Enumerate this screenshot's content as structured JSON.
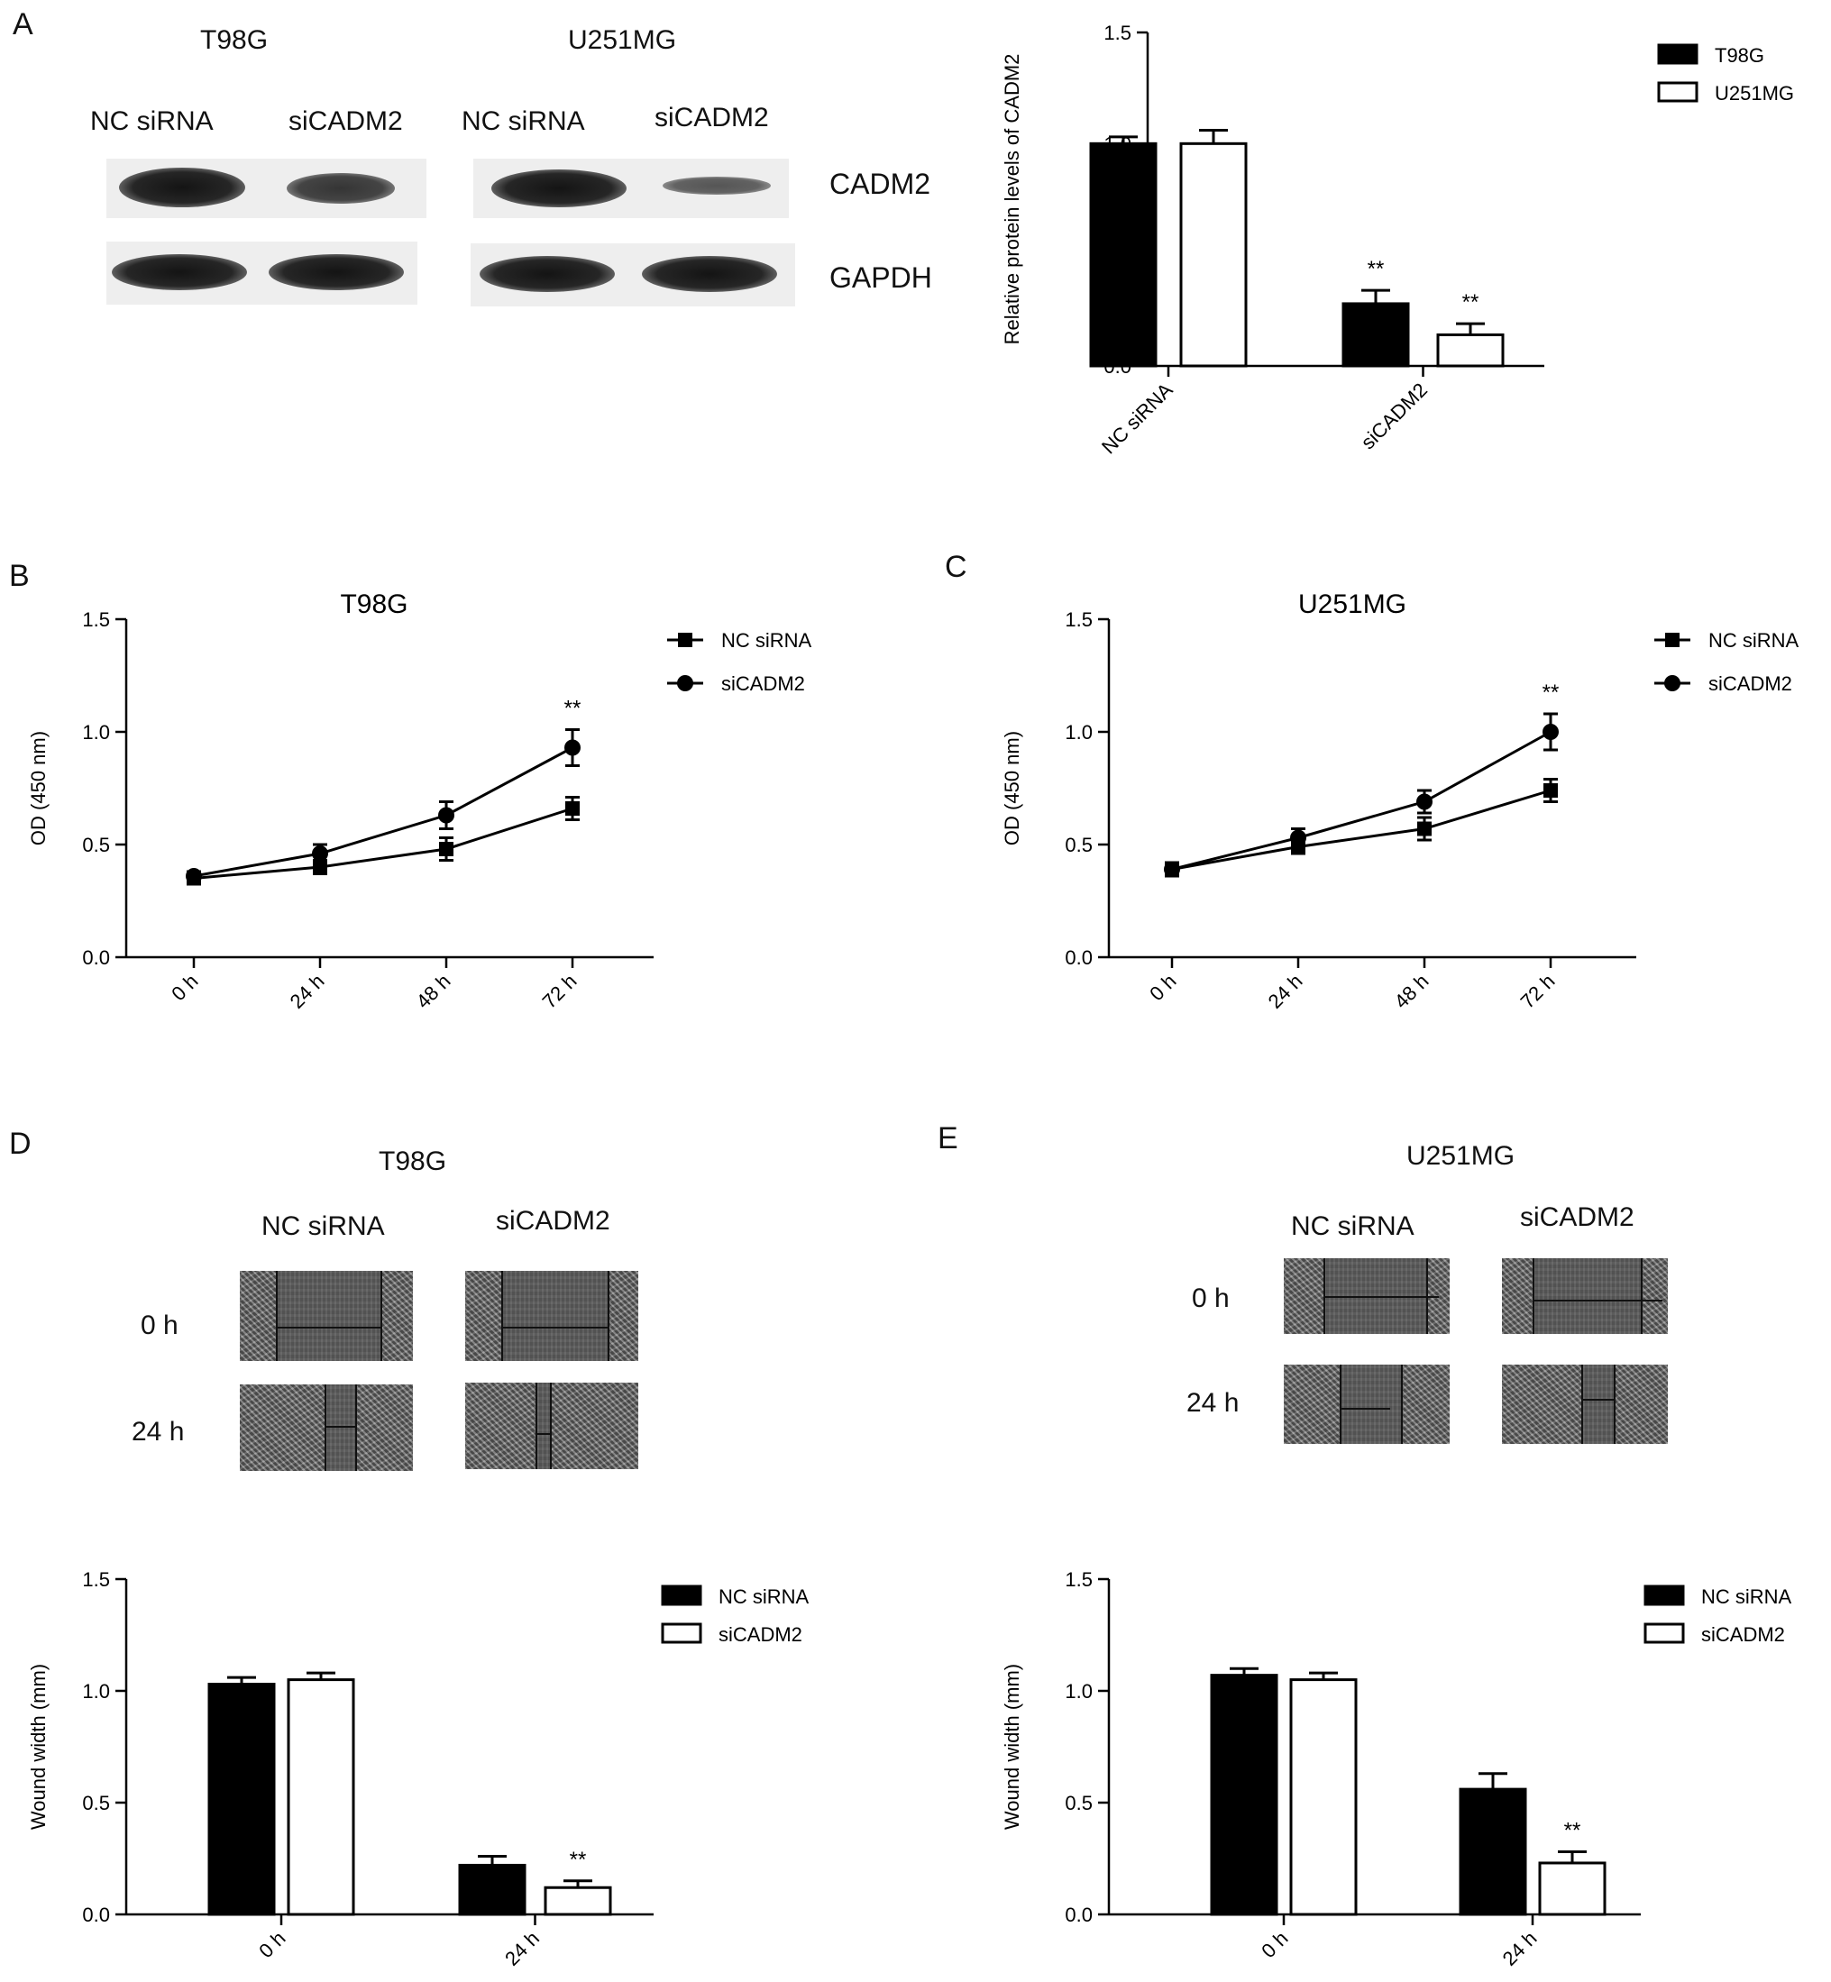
{
  "panels": {
    "A": {
      "letter": "A",
      "blot": {
        "cell_lines": [
          "T98G",
          "U251MG"
        ],
        "lanes": [
          "NC siRNA",
          "siCADM2",
          "NC siRNA",
          "siCADM2"
        ],
        "rows": [
          "CADM2",
          "GAPDH"
        ]
      }
    },
    "B": {
      "letter": "B"
    },
    "C": {
      "letter": "C"
    },
    "D": {
      "letter": "D",
      "title": "T98G",
      "col_labels": [
        "NC siRNA",
        "siCADM2"
      ],
      "row_labels": [
        "0 h",
        "24 h"
      ]
    },
    "E": {
      "letter": "E",
      "title": "U251MG",
      "col_labels": [
        "NC siRNA",
        "siCADM2"
      ],
      "row_labels": [
        "0 h",
        "24 h"
      ]
    }
  },
  "colors": {
    "filled": "#000000",
    "open": "#ffffff",
    "axis": "#000000"
  },
  "chart_data": [
    {
      "id": "A-bar",
      "type": "bar",
      "title": "",
      "ylabel": "Relative protein levels of CADM2",
      "xlabel": "",
      "categories": [
        "NC siRNA",
        "siCADM2"
      ],
      "ylim": [
        0,
        1.5
      ],
      "yticks": [
        "0.0",
        "0.5",
        "1.0",
        "1.5"
      ],
      "series": [
        {
          "name": "T98G",
          "style": "filled",
          "values": [
            1.0,
            0.28
          ],
          "errors": [
            0.03,
            0.06
          ]
        },
        {
          "name": "U251MG",
          "style": "open",
          "values": [
            1.0,
            0.14
          ],
          "errors": [
            0.06,
            0.05
          ]
        }
      ],
      "annotations": [
        {
          "series": 0,
          "category": 1,
          "text": "**"
        },
        {
          "series": 1,
          "category": 1,
          "text": "**"
        }
      ],
      "legend": "top-right",
      "grid": false
    },
    {
      "id": "B-line",
      "type": "line",
      "title": "T98G",
      "ylabel": "OD (450 nm)",
      "xlabel": "",
      "categories": [
        "0 h",
        "24 h",
        "48 h",
        "72 h"
      ],
      "ylim": [
        0,
        1.5
      ],
      "yticks": [
        "0.0",
        "0.5",
        "1.0",
        "1.5"
      ],
      "series": [
        {
          "name": "NC siRNA",
          "marker": "square",
          "values": [
            0.35,
            0.4,
            0.48,
            0.66
          ],
          "errors": [
            0.02,
            0.03,
            0.05,
            0.05
          ]
        },
        {
          "name": "siCADM2",
          "marker": "circle",
          "values": [
            0.36,
            0.46,
            0.63,
            0.93
          ],
          "errors": [
            0.02,
            0.04,
            0.06,
            0.08
          ]
        }
      ],
      "annotations": [
        {
          "category": 3,
          "text": "**"
        }
      ],
      "legend": "top-right",
      "grid": false
    },
    {
      "id": "C-line",
      "type": "line",
      "title": "U251MG",
      "ylabel": "OD (450 nm)",
      "xlabel": "",
      "categories": [
        "0 h",
        "24 h",
        "48 h",
        "72 h"
      ],
      "ylim": [
        0,
        1.5
      ],
      "yticks": [
        "0.0",
        "0.5",
        "1.0",
        "1.5"
      ],
      "series": [
        {
          "name": "NC siRNA",
          "marker": "square",
          "values": [
            0.39,
            0.49,
            0.57,
            0.74
          ],
          "errors": [
            0.03,
            0.03,
            0.05,
            0.05
          ]
        },
        {
          "name": "siCADM2",
          "marker": "circle",
          "values": [
            0.39,
            0.53,
            0.69,
            1.0
          ],
          "errors": [
            0.03,
            0.04,
            0.05,
            0.08
          ]
        }
      ],
      "annotations": [
        {
          "category": 3,
          "text": "**"
        }
      ],
      "legend": "top-right",
      "grid": false
    },
    {
      "id": "D-bar",
      "type": "bar",
      "title": "",
      "ylabel": "Wound width (mm)",
      "xlabel": "",
      "categories": [
        "0 h",
        "24 h"
      ],
      "ylim": [
        0,
        1.5
      ],
      "yticks": [
        "0.0",
        "0.5",
        "1.0",
        "1.5"
      ],
      "series": [
        {
          "name": "NC siRNA",
          "style": "filled",
          "values": [
            1.03,
            0.22
          ],
          "errors": [
            0.03,
            0.04
          ]
        },
        {
          "name": "siCADM2",
          "style": "open",
          "values": [
            1.05,
            0.12
          ],
          "errors": [
            0.03,
            0.03
          ]
        }
      ],
      "annotations": [
        {
          "series": 1,
          "category": 1,
          "text": "**"
        }
      ],
      "legend": "top-right",
      "grid": false
    },
    {
      "id": "E-bar",
      "type": "bar",
      "title": "",
      "ylabel": "Wound width (mm)",
      "xlabel": "",
      "categories": [
        "0 h",
        "24 h"
      ],
      "ylim": [
        0,
        1.5
      ],
      "yticks": [
        "0.0",
        "0.5",
        "1.0",
        "1.5"
      ],
      "series": [
        {
          "name": "NC siRNA",
          "style": "filled",
          "values": [
            1.07,
            0.56
          ],
          "errors": [
            0.03,
            0.07
          ]
        },
        {
          "name": "siCADM2",
          "style": "open",
          "values": [
            1.05,
            0.23
          ],
          "errors": [
            0.03,
            0.05
          ]
        }
      ],
      "annotations": [
        {
          "series": 1,
          "category": 1,
          "text": "**"
        }
      ],
      "legend": "top-right",
      "grid": false
    }
  ]
}
